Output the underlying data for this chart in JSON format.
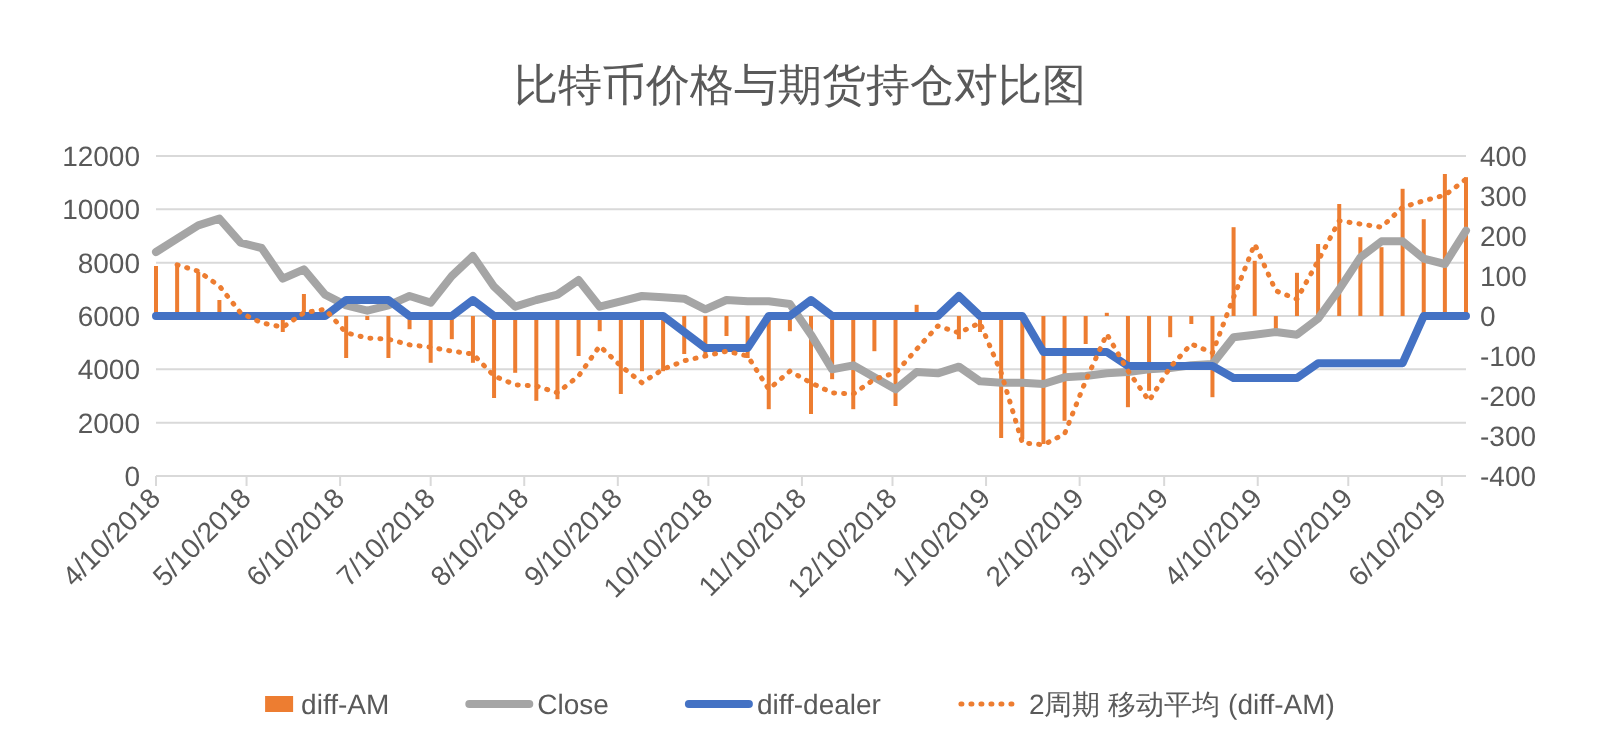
{
  "chart_data": {
    "type": "line",
    "title": "比特币价格与期货持仓对比图",
    "x": [
      "2018-04-10",
      "2018-04-17",
      "2018-04-24",
      "2018-05-01",
      "2018-05-08",
      "2018-05-15",
      "2018-05-22",
      "2018-05-29",
      "2018-06-05",
      "2018-06-12",
      "2018-06-19",
      "2018-06-26",
      "2018-07-03",
      "2018-07-10",
      "2018-07-17",
      "2018-07-24",
      "2018-07-31",
      "2018-08-07",
      "2018-08-14",
      "2018-08-21",
      "2018-08-28",
      "2018-09-04",
      "2018-09-11",
      "2018-09-18",
      "2018-09-25",
      "2018-10-02",
      "2018-10-09",
      "2018-10-16",
      "2018-10-23",
      "2018-10-30",
      "2018-11-06",
      "2018-11-13",
      "2018-11-20",
      "2018-11-27",
      "2018-12-04",
      "2018-12-11",
      "2018-12-18",
      "2018-12-25",
      "2019-01-01",
      "2019-01-08",
      "2019-01-15",
      "2019-01-22",
      "2019-01-29",
      "2019-02-05",
      "2019-02-12",
      "2019-02-19",
      "2019-02-26",
      "2019-03-05",
      "2019-03-12",
      "2019-03-19",
      "2019-03-26",
      "2019-04-02",
      "2019-04-09",
      "2019-04-16",
      "2019-04-23",
      "2019-04-30",
      "2019-05-07",
      "2019-05-14",
      "2019-05-21",
      "2019-05-28",
      "2019-06-04",
      "2019-06-11",
      "2019-06-18"
    ],
    "series": [
      {
        "name": "diff-AM",
        "type": "bar",
        "axis": "y2",
        "color": "#ed7d31",
        "values": [
          125,
          130,
          110,
          40,
          null,
          null,
          -40,
          55,
          null,
          -105,
          -10,
          -105,
          -33,
          -117,
          -58,
          -117,
          -205,
          -142,
          -212,
          -208,
          -100,
          -38,
          -195,
          -138,
          -138,
          -95,
          -100,
          -50,
          -105,
          -233,
          -38,
          -245,
          -158,
          -233,
          -88,
          -225,
          28,
          null,
          -58,
          -40,
          -305,
          -308,
          -320,
          -262,
          -70,
          8,
          -228,
          -187,
          -53,
          -20,
          -203,
          222,
          138,
          -37,
          108,
          180,
          280,
          197,
          172,
          318,
          242,
          355,
          347
        ]
      },
      {
        "name": "Close",
        "axis": "y",
        "color": "#a5a5a5",
        "line_style": "solid",
        "values": [
          8400,
          8900,
          9400,
          9650,
          8750,
          8550,
          7400,
          7750,
          6800,
          6400,
          6200,
          6400,
          6750,
          6500,
          7500,
          8250,
          7100,
          6350,
          6600,
          6800,
          7350,
          6350,
          6550,
          6750,
          6700,
          6650,
          6250,
          6600,
          6550,
          6550,
          6450,
          5300,
          4000,
          4150,
          3700,
          3250,
          3900,
          3850,
          4100,
          3550,
          3500,
          3500,
          3450,
          3700,
          3750,
          3850,
          3900,
          4000,
          4050,
          4150,
          4200,
          5200,
          5300,
          5400,
          5300,
          5900,
          7000,
          8200,
          8800,
          8800,
          8150,
          7950,
          9200
        ]
      },
      {
        "name": "diff-dealer",
        "axis": "y2",
        "color": "#4472c4",
        "line_style": "solid",
        "values": [
          0,
          0,
          0,
          0,
          0,
          0,
          0,
          0,
          0,
          40,
          40,
          40,
          0,
          0,
          0,
          40,
          0,
          0,
          0,
          0,
          0,
          0,
          0,
          0,
          0,
          -40,
          -80,
          -80,
          -80,
          0,
          0,
          40,
          0,
          0,
          0,
          0,
          0,
          0,
          50,
          0,
          0,
          0,
          -90,
          -90,
          -90,
          -90,
          -125,
          -125,
          -125,
          -125,
          -125,
          -155,
          -155,
          -155,
          -155,
          -118,
          -118,
          -118,
          -118,
          -118,
          0,
          0,
          0
        ]
      },
      {
        "name": "2周期 移动平均 (diff-AM)",
        "axis": "y2",
        "color": "#ed7d31",
        "line_style": "dotted",
        "values": [
          null,
          128,
          112,
          75,
          8,
          -17,
          -28,
          8,
          17,
          -42,
          -55,
          -58,
          -72,
          -78,
          -88,
          -95,
          -150,
          -172,
          -175,
          -192,
          -150,
          -75,
          -125,
          -167,
          -133,
          -112,
          -100,
          -88,
          -100,
          -183,
          -138,
          -167,
          -192,
          -195,
          -158,
          -142,
          -83,
          -25,
          -42,
          -17,
          -142,
          -317,
          -322,
          -295,
          -162,
          -45,
          -137,
          -212,
          -128,
          -70,
          -92,
          47,
          180,
          63,
          42,
          138,
          238,
          230,
          222,
          272,
          288,
          302,
          342
        ]
      }
    ],
    "xlim": [
      "2018-04-10",
      "2019-06-18"
    ],
    "xticks": [
      {
        "value": "2018-04-10",
        "label": "4/10/2018"
      },
      {
        "value": "2018-05-10",
        "label": "5/10/2018"
      },
      {
        "value": "2018-06-10",
        "label": "6/10/2018"
      },
      {
        "value": "2018-07-10",
        "label": "7/10/2018"
      },
      {
        "value": "2018-08-10",
        "label": "8/10/2018"
      },
      {
        "value": "2018-09-10",
        "label": "9/10/2018"
      },
      {
        "value": "2018-10-10",
        "label": "10/10/2018"
      },
      {
        "value": "2018-11-10",
        "label": "11/10/2018"
      },
      {
        "value": "2018-12-10",
        "label": "12/10/2018"
      },
      {
        "value": "2019-01-10",
        "label": "1/10/2019"
      },
      {
        "value": "2019-02-10",
        "label": "2/10/2019"
      },
      {
        "value": "2019-03-10",
        "label": "3/10/2019"
      },
      {
        "value": "2019-04-10",
        "label": "4/10/2019"
      },
      {
        "value": "2019-05-10",
        "label": "5/10/2019"
      },
      {
        "value": "2019-06-10",
        "label": "6/10/2019"
      }
    ],
    "ylim": [
      0,
      12000
    ],
    "yticks": [
      0,
      2000,
      4000,
      6000,
      8000,
      10000,
      12000
    ],
    "y2lim": [
      -400,
      400
    ],
    "y2ticks": [
      -400,
      -300,
      -200,
      -100,
      0,
      100,
      200,
      300,
      400
    ],
    "grid": "y",
    "legend": "bottom"
  }
}
